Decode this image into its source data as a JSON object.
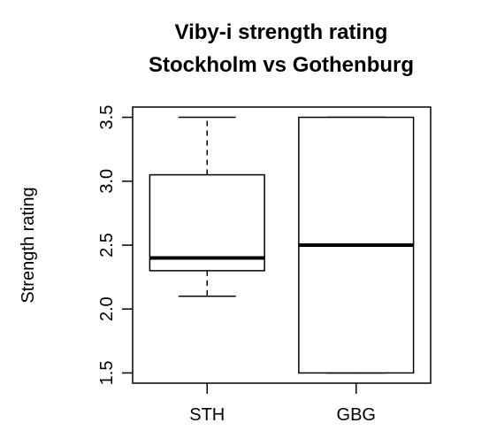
{
  "chart_data": {
    "type": "box",
    "title": [
      "Viby-i strength rating",
      "Stockholm vs Gothenburg"
    ],
    "y_label": "Strength rating",
    "categories": [
      "STH",
      "GBG"
    ],
    "boxes": [
      {
        "min": 2.1,
        "q1": 2.3,
        "median": 2.4,
        "q3": 3.05,
        "max": 3.5
      },
      {
        "min": 1.5,
        "q1": 1.5,
        "median": 2.5,
        "q3": 3.5,
        "max": 3.5
      }
    ],
    "ylim": [
      1.42,
      3.58
    ],
    "yticks": [
      1.5,
      {
        "value": 2,
        "label": "2.0"
      },
      2.5,
      {
        "value": 3,
        "label": "3.0"
      },
      3.5
    ],
    "color": "#000000"
  }
}
